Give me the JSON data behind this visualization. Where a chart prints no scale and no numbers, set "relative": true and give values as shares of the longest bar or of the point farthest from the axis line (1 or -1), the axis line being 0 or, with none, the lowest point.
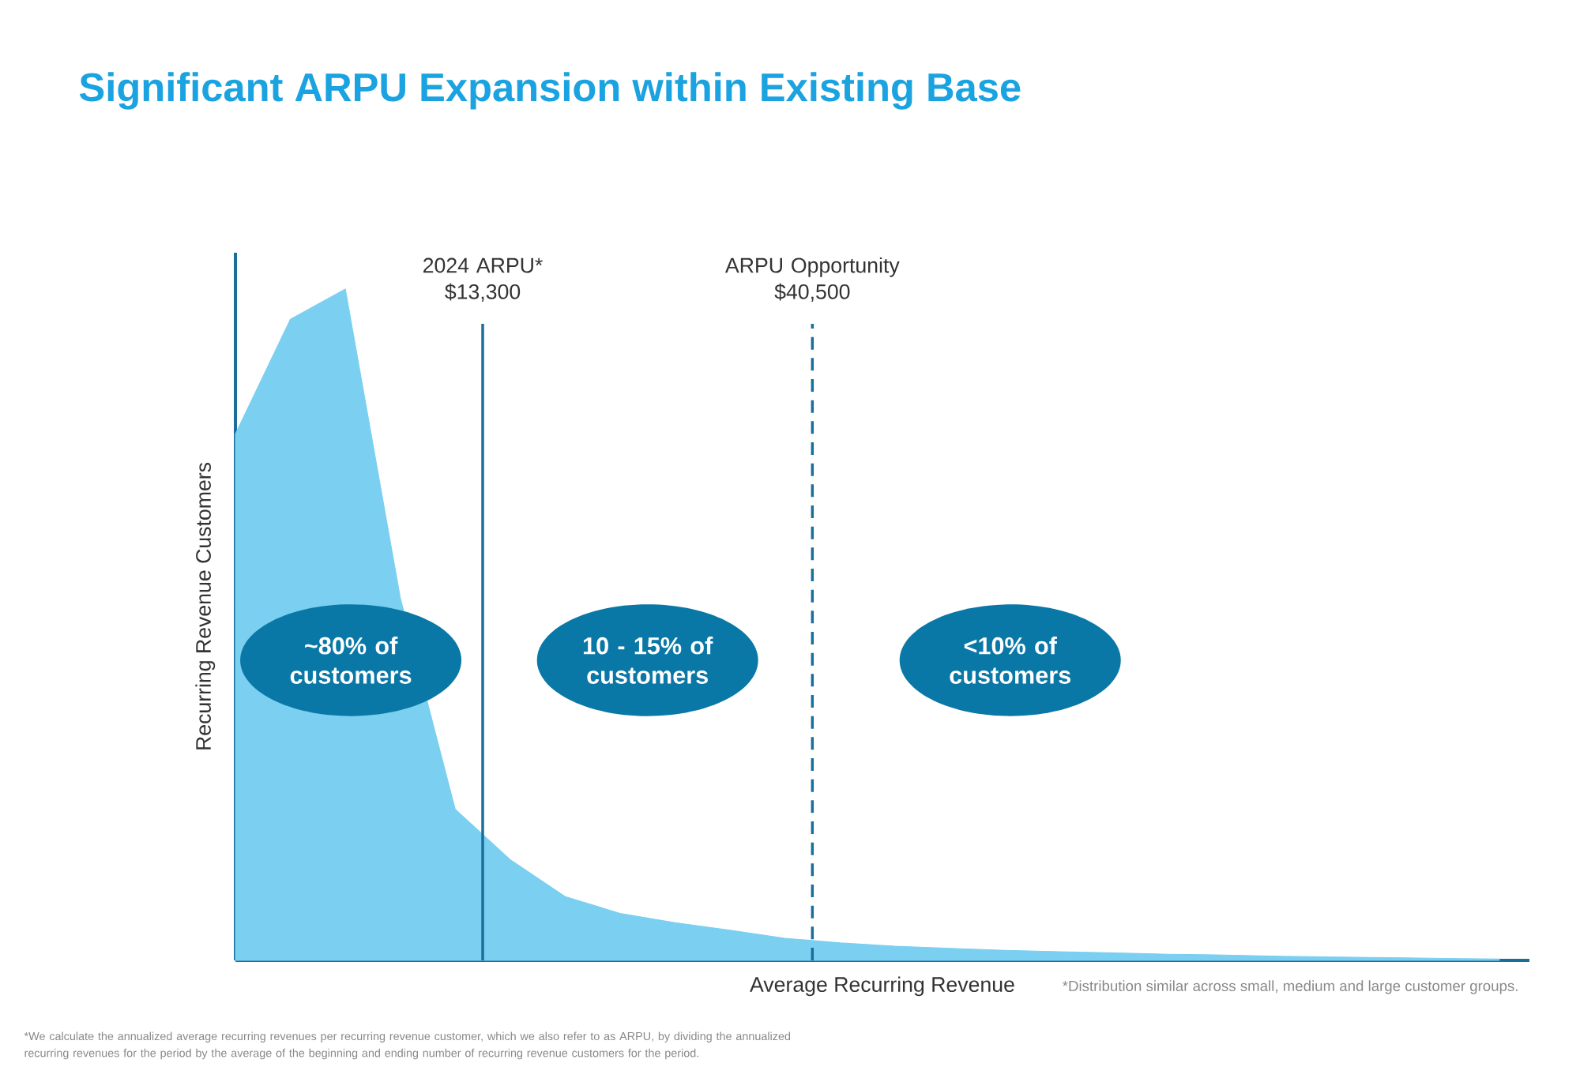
{
  "chart_data": {
    "type": "area",
    "title": "Significant ARPU Expansion within Existing Base",
    "xlabel": "Average Recurring Revenue",
    "ylabel": "Recurring Revenue Customers",
    "relative": true,
    "tick_labels": false,
    "categories": [
      null,
      null,
      null,
      null,
      null,
      null,
      null,
      null,
      null,
      null,
      null,
      null,
      null,
      null,
      null,
      null,
      null,
      null,
      null,
      null,
      null,
      null,
      null,
      null
    ],
    "series": [
      {
        "color": "#7bcff0",
        "values": [
          0.784,
          0.955,
          1.0,
          0.54,
          0.225,
          0.15,
          0.095,
          0.07,
          0.056,
          0.045,
          0.033,
          0.026,
          0.021,
          0.018,
          0.015,
          0.013,
          0.011,
          0.009,
          0.008,
          0.006,
          0.005,
          0.004,
          0.003,
          0.002
        ]
      }
    ],
    "annotations": [
      "~80% of customers",
      "10 - 15% of customers",
      "<10% of customers",
      "*Distribution similar across small, medium and large customer groups.",
      "*We calculate the annualized average recurring revenues per recurring revenue customer, which we also refer to as ARPU, by dividing the annualized recurring revenues for the period by the average of the beginning and ending number of recurring revenue customers for the period.",
      "2024 ARPU* $13,300",
      "ARPU Opportunity $40,500"
    ]
  }
}
